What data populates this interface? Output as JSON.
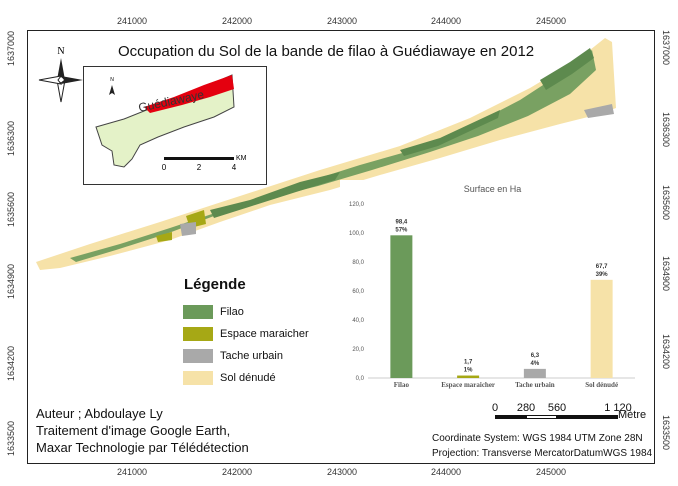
{
  "title": "Occupation du Sol de la bande de filao à Guédiawaye en 2012",
  "grid": {
    "x_ticks": [
      "241000",
      "242000",
      "243000",
      "244000",
      "245000"
    ],
    "y_ticks": [
      "1637000",
      "1636300",
      "1635600",
      "1634900",
      "1634200",
      "1633500"
    ]
  },
  "inset": {
    "place_label": "Guédiawaye",
    "scale_labels": [
      "0",
      "2",
      "4"
    ],
    "scale_unit": "KM",
    "north_label": "N"
  },
  "north_arrow": {
    "label": "N"
  },
  "legend": {
    "title": "Légende",
    "items": [
      {
        "label": "Filao",
        "color": "#6b9a5a"
      },
      {
        "label": "Espace maraicher",
        "color": "#a6a815"
      },
      {
        "label": "Tache urbain",
        "color": "#a9a9a9"
      },
      {
        "label": "Sol dénudé",
        "color": "#f6e2a8"
      }
    ]
  },
  "chart_data": {
    "type": "bar",
    "title": "Surface en Ha",
    "categories": [
      "Filao",
      "Espace maraicher",
      "Tache urbain",
      "Sol dénudé"
    ],
    "values": [
      98.4,
      1.7,
      6.3,
      67.7
    ],
    "value_labels": [
      "98,4",
      "1,7",
      "6,3",
      "67,7"
    ],
    "percent_labels": [
      "57%",
      "1%",
      "4%",
      "39%"
    ],
    "colors": [
      "#6b9a5a",
      "#a6a815",
      "#a9a9a9",
      "#f6e2a8"
    ],
    "ylim": [
      0,
      120
    ],
    "y_ticks": [
      "0,0",
      "20,0",
      "40,0",
      "60,0",
      "80,0",
      "100,0",
      "120,0"
    ],
    "xlabel": "",
    "ylabel": ""
  },
  "scale_bar": {
    "labels": [
      "0",
      "280",
      "560",
      "1 120"
    ],
    "unit": "Mètre"
  },
  "author_lines": [
    "Auteur ; Abdoulaye Ly",
    "Traitement d'image Google Earth,",
    "Maxar Technologie par Télédétection"
  ],
  "coordinate_lines": [
    "Coordinate System: WGS 1984 UTM Zone 28N",
    "Projection: Transverse MercatorDatumWGS 1984"
  ]
}
